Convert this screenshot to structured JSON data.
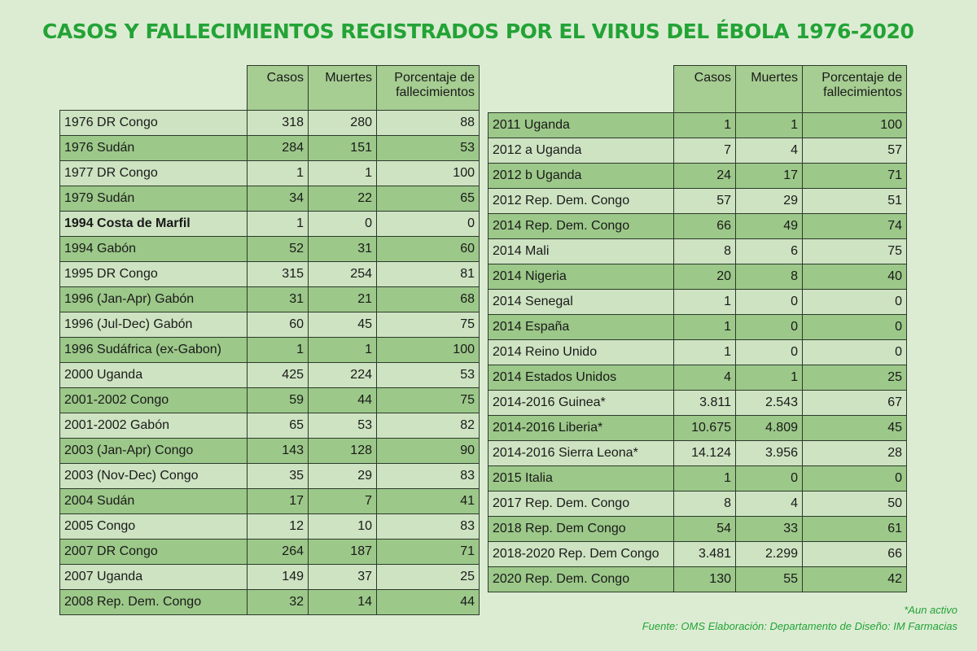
{
  "title": "CASOS Y FALLECIMIENTOS REGISTRADOS POR EL VIRUS DEL ÉBOLA 1976-2020",
  "columns": {
    "cases": "Casos",
    "deaths": "Muertes",
    "pct_line1": "Porcentaje de",
    "pct_line2": "fallecimientos"
  },
  "left_rows": [
    {
      "name": "1976 DR Congo",
      "cases": "318",
      "deaths": "280",
      "pct": "88",
      "shade": "light"
    },
    {
      "name": "1976 Sudán",
      "cases": "284",
      "deaths": "151",
      "pct": "53",
      "shade": "dark"
    },
    {
      "name": "1977 DR Congo",
      "cases": "1",
      "deaths": "1",
      "pct": "100",
      "shade": "light"
    },
    {
      "name": "1979 Sudán",
      "cases": "34",
      "deaths": "22",
      "pct": "65",
      "shade": "dark"
    },
    {
      "name": "1994 Costa de Marfil",
      "cases": "1",
      "deaths": "0",
      "pct": "0",
      "shade": "light",
      "bold": true
    },
    {
      "name": "1994 Gabón",
      "cases": "52",
      "deaths": "31",
      "pct": "60",
      "shade": "dark"
    },
    {
      "name": "1995 DR Congo",
      "cases": "315",
      "deaths": "254",
      "pct": "81",
      "shade": "light"
    },
    {
      "name": "1996 (Jan-Apr) Gabón",
      "cases": "31",
      "deaths": "21",
      "pct": "68",
      "shade": "dark"
    },
    {
      "name": "1996 (Jul-Dec) Gabón",
      "cases": "60",
      "deaths": "45",
      "pct": "75",
      "shade": "light"
    },
    {
      "name": "1996 Sudáfrica (ex-Gabon)",
      "cases": "1",
      "deaths": "1",
      "pct": "100",
      "shade": "dark"
    },
    {
      "name": "2000 Uganda",
      "cases": "425",
      "deaths": "224",
      "pct": "53",
      "shade": "light"
    },
    {
      "name": "2001-2002 Congo",
      "cases": "59",
      "deaths": "44",
      "pct": "75",
      "shade": "dark"
    },
    {
      "name": "2001-2002 Gabón",
      "cases": "65",
      "deaths": "53",
      "pct": "82",
      "shade": "light"
    },
    {
      "name": "2003 (Jan-Apr) Congo",
      "cases": "143",
      "deaths": "128",
      "pct": "90",
      "shade": "dark"
    },
    {
      "name": "2003 (Nov-Dec) Congo",
      "cases": "35",
      "deaths": "29",
      "pct": "83",
      "shade": "light"
    },
    {
      "name": "2004 Sudán",
      "cases": "17",
      "deaths": "7",
      "pct": "41",
      "shade": "dark"
    },
    {
      "name": "2005 Congo",
      "cases": "12",
      "deaths": "10",
      "pct": "83",
      "shade": "light"
    },
    {
      "name": "2007 DR Congo",
      "cases": "264",
      "deaths": "187",
      "pct": "71",
      "shade": "dark"
    },
    {
      "name": "2007 Uganda",
      "cases": "149",
      "deaths": "37",
      "pct": "25",
      "shade": "light"
    },
    {
      "name": "2008 Rep. Dem. Congo",
      "cases": "32",
      "deaths": "14",
      "pct": "44",
      "shade": "dark"
    }
  ],
  "right_rows": [
    {
      "name": "2011 Uganda",
      "cases": "1",
      "deaths": "1",
      "pct": "100",
      "shade": "dark"
    },
    {
      "name": "2012 a Uganda",
      "cases": "7",
      "deaths": "4",
      "pct": "57",
      "shade": "light"
    },
    {
      "name": "2012 b Uganda",
      "cases": "24",
      "deaths": "17",
      "pct": "71",
      "shade": "dark"
    },
    {
      "name": "2012 Rep. Dem. Congo",
      "cases": "57",
      "deaths": "29",
      "pct": "51",
      "shade": "light"
    },
    {
      "name": "2014 Rep. Dem. Congo",
      "cases": "66",
      "deaths": "49",
      "pct": "74",
      "shade": "dark"
    },
    {
      "name": "2014 Mali",
      "cases": "8",
      "deaths": "6",
      "pct": "75",
      "shade": "light"
    },
    {
      "name": "2014 Nigeria",
      "cases": "20",
      "deaths": "8",
      "pct": "40",
      "shade": "dark"
    },
    {
      "name": "2014 Senegal",
      "cases": "1",
      "deaths": "0",
      "pct": "0",
      "shade": "light"
    },
    {
      "name": "2014 España",
      "cases": "1",
      "deaths": "0",
      "pct": "0",
      "shade": "dark"
    },
    {
      "name": "2014 Reino Unido",
      "cases": "1",
      "deaths": "0",
      "pct": "0",
      "shade": "light"
    },
    {
      "name": "2014 Estados Unidos",
      "cases": "4",
      "deaths": "1",
      "pct": "25",
      "shade": "dark"
    },
    {
      "name": "2014-2016 Guinea*",
      "cases": "3.811",
      "deaths": "2.543",
      "pct": "67",
      "shade": "light"
    },
    {
      "name": "2014-2016 Liberia*",
      "cases": "10.675",
      "deaths": "4.809",
      "pct": "45",
      "shade": "dark"
    },
    {
      "name": "2014-2016 Sierra Leona*",
      "cases": "14.124",
      "deaths": "3.956",
      "pct": "28",
      "shade": "light"
    },
    {
      "name": "2015 Italia",
      "cases": "1",
      "deaths": "0",
      "pct": "0",
      "shade": "dark"
    },
    {
      "name": "2017 Rep. Dem. Congo",
      "cases": "8",
      "deaths": "4",
      "pct": "50",
      "shade": "light"
    },
    {
      "name": "2018 Rep. Dem Congo",
      "cases": "54",
      "deaths": "33",
      "pct": "61",
      "shade": "dark"
    },
    {
      "name": "2018-2020 Rep. Dem Congo",
      "cases": "3.481",
      "deaths": "2.299",
      "pct": "66",
      "shade": "light"
    },
    {
      "name": "2020 Rep. Dem. Congo",
      "cases": "130",
      "deaths": "55",
      "pct": "42",
      "shade": "dark"
    }
  ],
  "footnotes": {
    "active": "*Aun activo",
    "source": "Fuente: OMS  Elaboración: Departamento de Diseño: IM Farmacias"
  }
}
